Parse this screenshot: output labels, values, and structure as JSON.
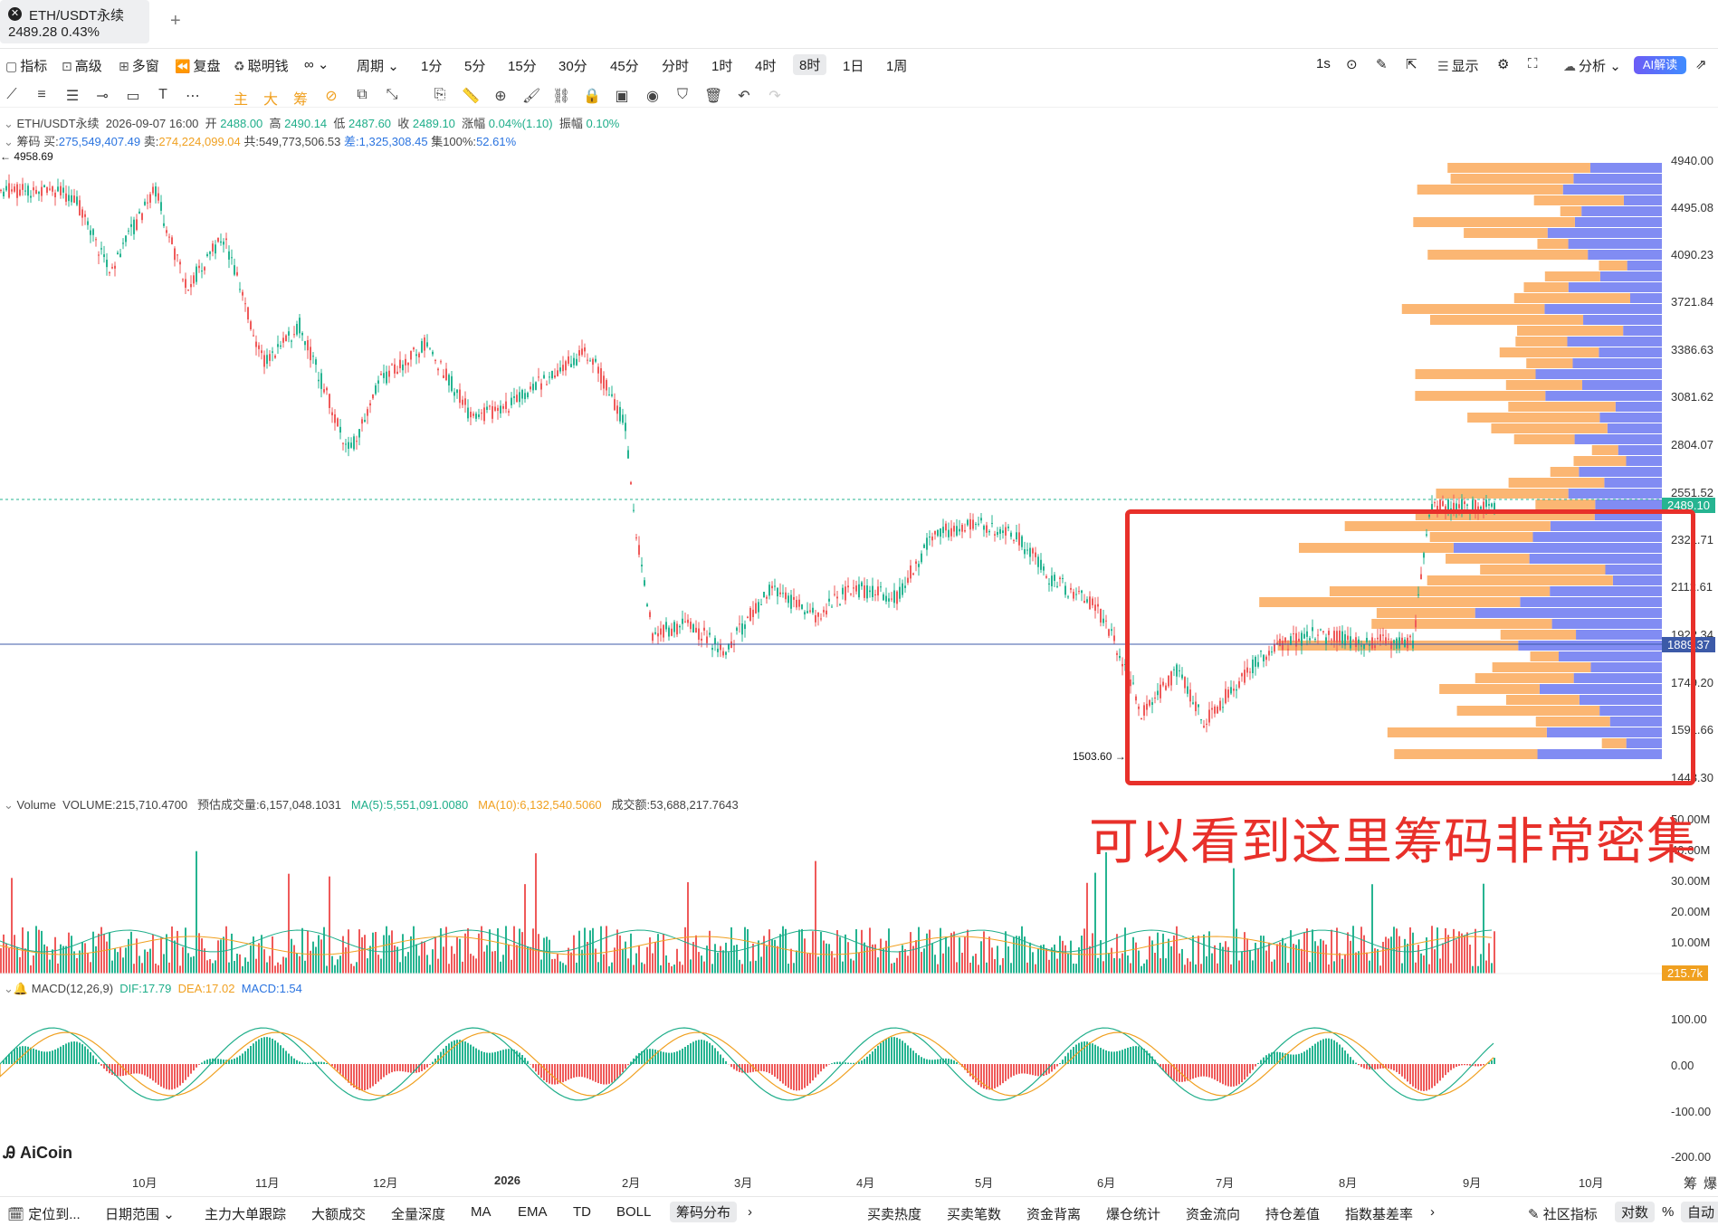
{
  "tab": {
    "title": "ETH/USDT永续",
    "price_line": "2489.28  0.43%",
    "add": "+"
  },
  "toolbar": {
    "indicators": "指标",
    "advanced": "高级",
    "multi_window": "多窗",
    "replay": "复盘",
    "smart_money": "聪明钱",
    "chart_type": "∞",
    "period": "周期",
    "intervals": [
      "1分",
      "5分",
      "15分",
      "30分",
      "45分",
      "分时",
      "1时",
      "4时",
      "8时",
      "1日",
      "1周"
    ],
    "active_interval": "8时",
    "right": {
      "seconds": "1s",
      "display": "显示",
      "analysis": "分析",
      "ai": "AI解读"
    }
  },
  "ohlc_line": {
    "symbol": "ETH/USDT永续",
    "time": "2026-09-07 16:00",
    "open_label": "开",
    "open": "2488.00",
    "high_label": "高",
    "high": "2490.14",
    "low_label": "低",
    "low": "2487.60",
    "close_label": "收",
    "close": "2489.10",
    "change_label": "涨幅",
    "change": "0.04%(1.10)",
    "amp_label": "振幅",
    "amp": "0.10%"
  },
  "chip_line": {
    "label": "筹码",
    "buy_label": "买:",
    "buy": "275,549,407.49",
    "sell_label": "卖:",
    "sell": "274,224,099.04",
    "total_label": "共:",
    "total": "549,773,506.53",
    "diff_label": "差:",
    "diff": "1,325,308.45",
    "conc_label": "集100%:",
    "conc": "52.61%"
  },
  "price_axis": {
    "labels": [
      "4940.00",
      "4495.08",
      "4090.23",
      "3721.84",
      "3386.63",
      "3081.62",
      "2804.07",
      "2551.52",
      "2321.71",
      "2112.61",
      "1922.34",
      "1749.20",
      "1591.66",
      "1448.30"
    ],
    "current": "2489.10",
    "cursor": "1889.37",
    "high_marker": "← 4958.69",
    "low_marker": "1503.60 →"
  },
  "volume_line": {
    "label": "Volume",
    "volume": "VOLUME:215,710.4700",
    "est": "预估成交量:6,157,048.1031",
    "ma5": "MA(5):5,551,091.0080",
    "ma10": "MA(10):6,132,540.5060",
    "amount": "成交额:53,688,217.7643"
  },
  "volume_axis": {
    "labels": [
      "50.00M",
      "40.00M",
      "30.00M",
      "20.00M",
      "10.00M"
    ],
    "current": "215.7k"
  },
  "macd_line": {
    "label": "MACD(12,26,9)",
    "dif": "DIF:17.79",
    "dea": "DEA:17.02",
    "macd": "MACD:1.54"
  },
  "macd_axis": {
    "labels": [
      "100.00",
      "0.00",
      "-100.00",
      "-200.00"
    ]
  },
  "time_axis": {
    "labels": [
      "10月",
      "11月",
      "12月",
      "2026",
      "2月",
      "3月",
      "4月",
      "5月",
      "6月",
      "7月",
      "8月",
      "9月",
      "10月"
    ],
    "right": [
      "筹",
      "爆"
    ]
  },
  "annotation": {
    "text": "可以看到这里筹码非常密集"
  },
  "logo": "AiCoin",
  "bottom_bar": {
    "locate": "定位到...",
    "date_range": "日期范围",
    "tabs": [
      "主力大单跟踪",
      "大额成交",
      "全量深度",
      "MA",
      "EMA",
      "TD",
      "BOLL",
      "筹码分布"
    ],
    "active_tab": "筹码分布",
    "right_tabs": [
      "买卖热度",
      "买卖笔数",
      "资金背离",
      "爆仓统计",
      "资金流向",
      "持仓差值",
      "指数基差率"
    ],
    "community": "社区指标",
    "log": "对数",
    "percent": "%",
    "auto": "自动"
  },
  "colors": {
    "up": "#26b491",
    "down": "#ef5a5a",
    "buy": "#7a86f2",
    "sell": "#fbb26c",
    "accent": "#2b74e0",
    "annotation": "#e8302a"
  }
}
